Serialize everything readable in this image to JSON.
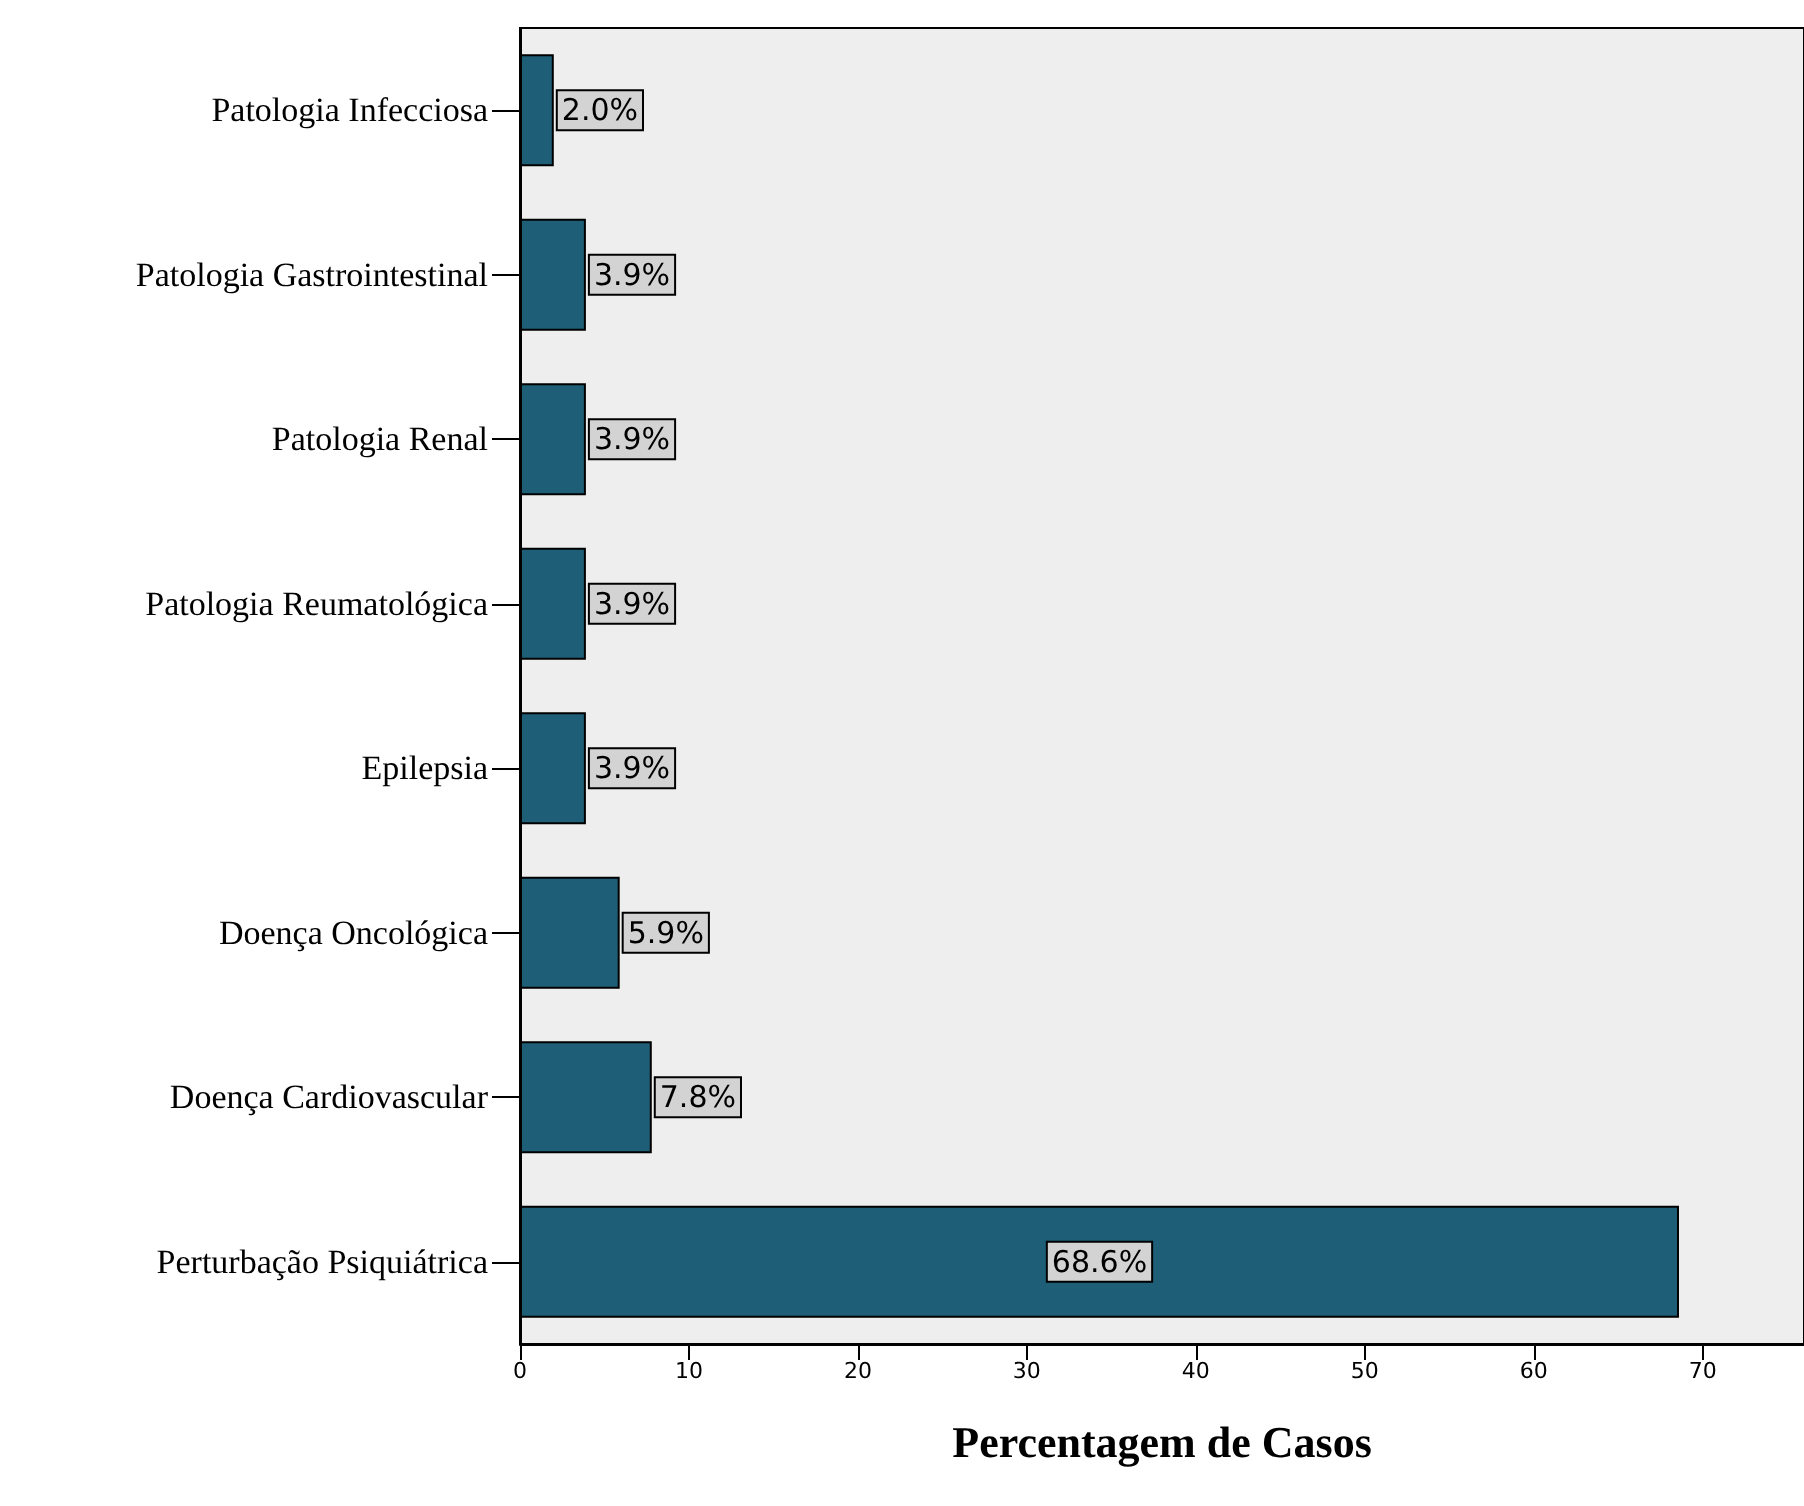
{
  "chart_data": {
    "type": "bar",
    "orientation": "horizontal",
    "xlabel": "Percentagem de Casos",
    "categories": [
      "Patologia Infecciosa",
      "Patologia Gastrointestinal",
      "Patologia Renal",
      "Patologia Reumatológica",
      "Epilepsia",
      "Doença Oncológica",
      "Doença Cardiovascular",
      "Perturbação Psiquiátrica"
    ],
    "values": [
      2.0,
      3.9,
      3.9,
      3.9,
      3.9,
      5.9,
      7.8,
      68.6
    ],
    "value_labels": [
      "2.0%",
      "3.9%",
      "3.9%",
      "3.9%",
      "3.9%",
      "5.9%",
      "7.8%",
      "68.6%"
    ],
    "color": "#1e5f77",
    "xlim": [
      0,
      76
    ],
    "xticks": [
      0,
      10,
      20,
      30,
      40,
      50,
      60,
      70
    ],
    "grid": false
  }
}
